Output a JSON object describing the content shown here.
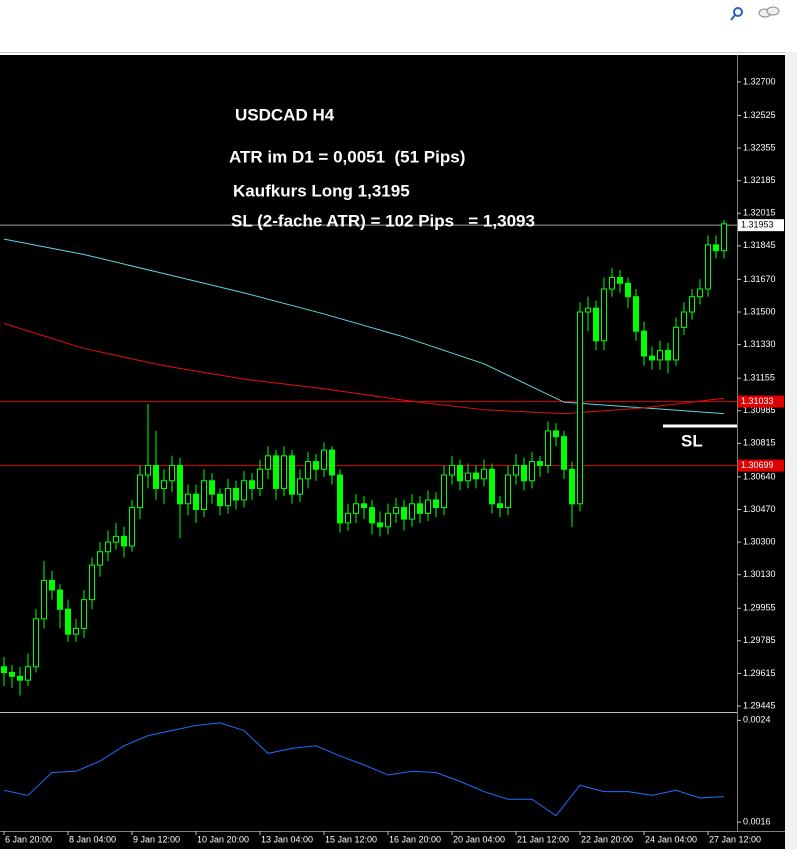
{
  "chart_data": [
    {
      "type": "candlestick",
      "title": "USDCAD H4",
      "annotations": [
        "ATR im D1 = 0,0051  (51 Pips)",
        "Kaufkurs Long 1,3195",
        "SL (2-fache ATR) = 102 Pips   = 1,3093",
        "SL"
      ],
      "categories": [
        "6 Jan 20:00",
        null,
        null,
        null,
        null,
        null,
        null,
        null,
        "8 Jan 04:00",
        null,
        null,
        null,
        null,
        null,
        null,
        null,
        "9 Jan 12:00",
        null,
        null,
        null,
        null,
        null,
        null,
        null,
        "10 Jan 20:00",
        null,
        null,
        null,
        null,
        null,
        null,
        null,
        "13 Jan 04:00",
        null,
        null,
        null,
        null,
        null,
        null,
        null,
        "15 Jan 12:00",
        null,
        null,
        null,
        null,
        null,
        null,
        null,
        "16 Jan 20:00",
        null,
        null,
        null,
        null,
        null,
        null,
        null,
        "20 Jan 04:00",
        null,
        null,
        null,
        null,
        null,
        null,
        null,
        "21 Jan 12:00",
        null,
        null,
        null,
        null,
        null,
        null,
        null,
        "22 Jan 20:00",
        null,
        null,
        null,
        null,
        null,
        null,
        null,
        "24 Jan 04:00",
        null,
        null,
        null,
        null,
        null,
        null,
        null,
        "27 Jan 12:00",
        null,
        null
      ],
      "ohlc": [
        [
          1.2965,
          1.297,
          1.2955,
          1.2962
        ],
        [
          1.2962,
          1.2966,
          1.2954,
          1.296
        ],
        [
          1.296,
          1.2965,
          1.295,
          1.2958
        ],
        [
          1.2958,
          1.2972,
          1.2955,
          1.2965
        ],
        [
          1.2965,
          1.2995,
          1.2962,
          1.299
        ],
        [
          1.299,
          1.302,
          1.2985,
          1.301
        ],
        [
          1.301,
          1.3015,
          1.3,
          1.3005
        ],
        [
          1.3005,
          1.3008,
          1.2985,
          1.2995
        ],
        [
          1.2995,
          1.3,
          1.2978,
          1.2982
        ],
        [
          1.2982,
          1.299,
          1.2978,
          1.2985
        ],
        [
          1.2985,
          1.3005,
          1.298,
          1.3
        ],
        [
          1.3,
          1.3022,
          1.2995,
          1.3018
        ],
        [
          1.3018,
          1.303,
          1.3012,
          1.3025
        ],
        [
          1.3025,
          1.3036,
          1.302,
          1.303
        ],
        [
          1.303,
          1.304,
          1.3026,
          1.3033
        ],
        [
          1.3033,
          1.3038,
          1.3022,
          1.3028
        ],
        [
          1.3028,
          1.3052,
          1.3025,
          1.3048
        ],
        [
          1.3048,
          1.307,
          1.3042,
          1.3065
        ],
        [
          1.3065,
          1.3102,
          1.3058,
          1.307
        ],
        [
          1.307,
          1.3088,
          1.3052,
          1.3058
        ],
        [
          1.3058,
          1.3068,
          1.305,
          1.3062
        ],
        [
          1.3062,
          1.3075,
          1.3056,
          1.307
        ],
        [
          1.307,
          1.3074,
          1.3032,
          1.305
        ],
        [
          1.305,
          1.306,
          1.3044,
          1.3055
        ],
        [
          1.3055,
          1.306,
          1.304,
          1.3047
        ],
        [
          1.3047,
          1.3068,
          1.3043,
          1.3062
        ],
        [
          1.3062,
          1.3066,
          1.305,
          1.3055
        ],
        [
          1.3055,
          1.3058,
          1.3044,
          1.3049
        ],
        [
          1.3049,
          1.3063,
          1.3045,
          1.3058
        ],
        [
          1.3058,
          1.3062,
          1.3047,
          1.3052
        ],
        [
          1.3052,
          1.3067,
          1.3048,
          1.3062
        ],
        [
          1.3062,
          1.3066,
          1.3052,
          1.3058
        ],
        [
          1.3058,
          1.3073,
          1.3054,
          1.3068
        ],
        [
          1.3068,
          1.308,
          1.3063,
          1.3075
        ],
        [
          1.3075,
          1.3078,
          1.3052,
          1.3058
        ],
        [
          1.3058,
          1.308,
          1.3054,
          1.3075
        ],
        [
          1.3075,
          1.3078,
          1.305,
          1.3055
        ],
        [
          1.3055,
          1.3068,
          1.3051,
          1.3063
        ],
        [
          1.3063,
          1.3077,
          1.3058,
          1.3072
        ],
        [
          1.3072,
          1.3076,
          1.3062,
          1.3068
        ],
        [
          1.3068,
          1.3082,
          1.3064,
          1.3078
        ],
        [
          1.3078,
          1.308,
          1.306,
          1.3065
        ],
        [
          1.3065,
          1.3068,
          1.3035,
          1.304
        ],
        [
          1.304,
          1.305,
          1.3036,
          1.3045
        ],
        [
          1.3045,
          1.3055,
          1.304,
          1.305
        ],
        [
          1.305,
          1.3054,
          1.3042,
          1.3048
        ],
        [
          1.3048,
          1.3052,
          1.3034,
          1.304
        ],
        [
          1.304,
          1.3046,
          1.3033,
          1.3038
        ],
        [
          1.3038,
          1.305,
          1.3034,
          1.3045
        ],
        [
          1.3045,
          1.3053,
          1.304,
          1.3048
        ],
        [
          1.3048,
          1.3052,
          1.3036,
          1.3042
        ],
        [
          1.3042,
          1.3055,
          1.3038,
          1.305
        ],
        [
          1.305,
          1.3054,
          1.304,
          1.3045
        ],
        [
          1.3045,
          1.3057,
          1.3041,
          1.3052
        ],
        [
          1.3052,
          1.3056,
          1.3043,
          1.3048
        ],
        [
          1.3048,
          1.307,
          1.3044,
          1.3065
        ],
        [
          1.3065,
          1.3075,
          1.306,
          1.307
        ],
        [
          1.307,
          1.3073,
          1.3057,
          1.3062
        ],
        [
          1.3062,
          1.3071,
          1.3058,
          1.3066
        ],
        [
          1.3066,
          1.307,
          1.3058,
          1.3063
        ],
        [
          1.3063,
          1.3073,
          1.3059,
          1.3068
        ],
        [
          1.3068,
          1.3071,
          1.3045,
          1.305
        ],
        [
          1.305,
          1.3054,
          1.3043,
          1.3048
        ],
        [
          1.3048,
          1.307,
          1.3044,
          1.3065
        ],
        [
          1.3065,
          1.3076,
          1.306,
          1.307
        ],
        [
          1.307,
          1.3074,
          1.3057,
          1.3062
        ],
        [
          1.3062,
          1.3077,
          1.3058,
          1.3072
        ],
        [
          1.3072,
          1.3075,
          1.3064,
          1.307
        ],
        [
          1.307,
          1.3093,
          1.3066,
          1.3088
        ],
        [
          1.3088,
          1.3092,
          1.308,
          1.3085
        ],
        [
          1.3085,
          1.3088,
          1.3063,
          1.3068
        ],
        [
          1.3068,
          1.3072,
          1.3038,
          1.305
        ],
        [
          1.305,
          1.3155,
          1.3046,
          1.315
        ],
        [
          1.315,
          1.3158,
          1.314,
          1.3152
        ],
        [
          1.3152,
          1.3156,
          1.313,
          1.3135
        ],
        [
          1.3135,
          1.3168,
          1.313,
          1.3162
        ],
        [
          1.3162,
          1.3173,
          1.3158,
          1.3168
        ],
        [
          1.3168,
          1.3172,
          1.316,
          1.3165
        ],
        [
          1.3165,
          1.3168,
          1.3152,
          1.3158
        ],
        [
          1.3158,
          1.3162,
          1.3135,
          1.314
        ],
        [
          1.314,
          1.3145,
          1.3122,
          1.3127
        ],
        [
          1.3127,
          1.3132,
          1.312,
          1.3125
        ],
        [
          1.3125,
          1.3135,
          1.312,
          1.313
        ],
        [
          1.313,
          1.3134,
          1.3118,
          1.3125
        ],
        [
          1.3125,
          1.3147,
          1.3122,
          1.3142
        ],
        [
          1.3142,
          1.3155,
          1.3138,
          1.315
        ],
        [
          1.315,
          1.3162,
          1.3146,
          1.3158
        ],
        [
          1.3158,
          1.3167,
          1.3154,
          1.3162
        ],
        [
          1.3162,
          1.319,
          1.3158,
          1.3185
        ],
        [
          1.3185,
          1.319,
          1.3178,
          1.3182
        ],
        [
          1.3182,
          1.3198,
          1.3178,
          1.3196
        ]
      ],
      "up_color": "#000000",
      "down_color": "#00ff00",
      "wick_color": "#00ff00",
      "series": [
        {
          "color": "#5fd3e0",
          "x": [
            0,
            10,
            20,
            30,
            40,
            50,
            60,
            70,
            80,
            90
          ],
          "values": [
            1.3188,
            1.318,
            1.317,
            1.316,
            1.3149,
            1.3137,
            1.3123,
            1.3103,
            1.31,
            1.3097
          ]
        },
        {
          "color": "#e01010",
          "x": [
            0,
            10,
            20,
            30,
            40,
            50,
            60,
            70,
            80,
            90
          ],
          "values": [
            1.3144,
            1.3131,
            1.3122,
            1.3115,
            1.311,
            1.3104,
            1.3099,
            1.3097,
            1.31,
            1.3105
          ]
        }
      ],
      "hlines": [
        {
          "value": 1.31953,
          "color": "#a0a0a0"
        },
        {
          "value": 1.31033,
          "color": "#e00000"
        },
        {
          "value": 1.30699,
          "color": "#e00000"
        }
      ],
      "ylim": [
        1.29414,
        1.3283
      ],
      "yticks": [
        {
          "value": 1.327,
          "label": "1.32700"
        },
        1.32525,
        1.32355,
        1.32185,
        1.32015,
        1.31845,
        {
          "value": 1.3167,
          "label": "1.31670"
        },
        {
          "value": 1.315,
          "label": "1.31500"
        },
        {
          "value": 1.3133,
          "label": "1.31330"
        },
        1.31155,
        1.30985,
        1.30815,
        {
          "value": 1.3064,
          "label": "1.30640"
        },
        {
          "value": 1.3047,
          "label": "1.30470"
        },
        {
          "value": 1.303,
          "label": "1.30300"
        },
        {
          "value": 1.3013,
          "label": "1.30130"
        },
        1.29955,
        1.29785,
        1.29615,
        1.29445
      ]
    },
    {
      "type": "line",
      "series": [
        {
          "color": "#1e6fff",
          "x": [
            0,
            3,
            6,
            9,
            12,
            15,
            18,
            21,
            24,
            27,
            30,
            33,
            36,
            39,
            42,
            45,
            48,
            51,
            54,
            57,
            60,
            63,
            66,
            69,
            72,
            75,
            78,
            81,
            84,
            87,
            90
          ],
          "values": [
            0.00185,
            0.00181,
            0.00199,
            0.002,
            0.00208,
            0.0022,
            0.00228,
            0.00232,
            0.00236,
            0.00238,
            0.00232,
            0.00214,
            0.00218,
            0.0022,
            0.00212,
            0.00205,
            0.00197,
            0.002,
            0.00199,
            0.00192,
            0.00184,
            0.00178,
            0.00178,
            0.00165,
            0.00189,
            0.00184,
            0.00184,
            0.00181,
            0.00185,
            0.00179,
            0.0018
          ]
        }
      ],
      "ylim": [
        0.00153,
        0.00245
      ],
      "yticks": [
        0.0024,
        0.0016
      ]
    }
  ]
}
